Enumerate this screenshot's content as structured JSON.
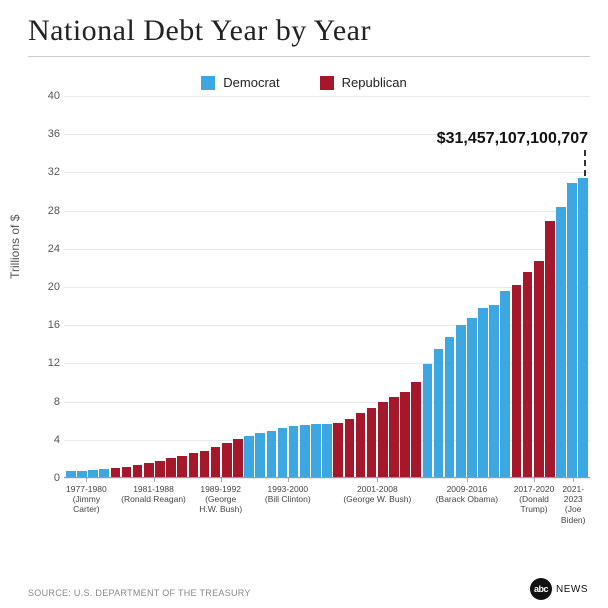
{
  "title": "National Debt Year by Year",
  "legend": {
    "democrat": {
      "label": "Democrat",
      "color": "#3ca7e0"
    },
    "republican": {
      "label": "Republican",
      "color": "#a5182b"
    }
  },
  "y_axis": {
    "label": "Trillions of $",
    "min": 0,
    "max": 40,
    "ticks": [
      0,
      4,
      8,
      12,
      16,
      20,
      24,
      28,
      32,
      36,
      40
    ],
    "grid_color": "#e8e8e8",
    "tick_fontsize": 11
  },
  "callout": {
    "text": "$31,457,107,100,707",
    "fontsize": 16
  },
  "presidents": [
    {
      "years": "1977-1980",
      "name": "(Jimmy Carter)",
      "party": "D",
      "span": 4
    },
    {
      "years": "1981-1988",
      "name": "(Ronald Reagan)",
      "party": "R",
      "span": 8
    },
    {
      "years": "1989-1992",
      "name": "(George H.W. Bush)",
      "party": "R",
      "span": 4
    },
    {
      "years": "1993-2000",
      "name": "(Bill Clinton)",
      "party": "D",
      "span": 8
    },
    {
      "years": "2001-2008",
      "name": "(George W. Bush)",
      "party": "R",
      "span": 8
    },
    {
      "years": "2009-2016",
      "name": "(Barack Obama)",
      "party": "D",
      "span": 8
    },
    {
      "years": "2017-2020",
      "name": "(Donald Trump)",
      "party": "R",
      "span": 4
    },
    {
      "years": "2021-2023",
      "name": "(Joe Biden)",
      "party": "D",
      "span": 3
    }
  ],
  "bars": [
    {
      "year": 1977,
      "value": 0.7,
      "party": "D"
    },
    {
      "year": 1978,
      "value": 0.77,
      "party": "D"
    },
    {
      "year": 1979,
      "value": 0.83,
      "party": "D"
    },
    {
      "year": 1980,
      "value": 0.91,
      "party": "D"
    },
    {
      "year": 1981,
      "value": 1.0,
      "party": "R"
    },
    {
      "year": 1982,
      "value": 1.14,
      "party": "R"
    },
    {
      "year": 1983,
      "value": 1.38,
      "party": "R"
    },
    {
      "year": 1984,
      "value": 1.57,
      "party": "R"
    },
    {
      "year": 1985,
      "value": 1.82,
      "party": "R"
    },
    {
      "year": 1986,
      "value": 2.13,
      "party": "R"
    },
    {
      "year": 1987,
      "value": 2.35,
      "party": "R"
    },
    {
      "year": 1988,
      "value": 2.6,
      "party": "R"
    },
    {
      "year": 1989,
      "value": 2.86,
      "party": "R"
    },
    {
      "year": 1990,
      "value": 3.23,
      "party": "R"
    },
    {
      "year": 1991,
      "value": 3.67,
      "party": "R"
    },
    {
      "year": 1992,
      "value": 4.06,
      "party": "R"
    },
    {
      "year": 1993,
      "value": 4.41,
      "party": "D"
    },
    {
      "year": 1994,
      "value": 4.69,
      "party": "D"
    },
    {
      "year": 1995,
      "value": 4.97,
      "party": "D"
    },
    {
      "year": 1996,
      "value": 5.22,
      "party": "D"
    },
    {
      "year": 1997,
      "value": 5.41,
      "party": "D"
    },
    {
      "year": 1998,
      "value": 5.53,
      "party": "D"
    },
    {
      "year": 1999,
      "value": 5.66,
      "party": "D"
    },
    {
      "year": 2000,
      "value": 5.67,
      "party": "D"
    },
    {
      "year": 2001,
      "value": 5.81,
      "party": "R"
    },
    {
      "year": 2002,
      "value": 6.23,
      "party": "R"
    },
    {
      "year": 2003,
      "value": 6.78,
      "party": "R"
    },
    {
      "year": 2004,
      "value": 7.38,
      "party": "R"
    },
    {
      "year": 2005,
      "value": 7.93,
      "party": "R"
    },
    {
      "year": 2006,
      "value": 8.51,
      "party": "R"
    },
    {
      "year": 2007,
      "value": 9.01,
      "party": "R"
    },
    {
      "year": 2008,
      "value": 10.02,
      "party": "R"
    },
    {
      "year": 2009,
      "value": 11.91,
      "party": "D"
    },
    {
      "year": 2010,
      "value": 13.56,
      "party": "D"
    },
    {
      "year": 2011,
      "value": 14.79,
      "party": "D"
    },
    {
      "year": 2012,
      "value": 16.07,
      "party": "D"
    },
    {
      "year": 2013,
      "value": 16.74,
      "party": "D"
    },
    {
      "year": 2014,
      "value": 17.82,
      "party": "D"
    },
    {
      "year": 2015,
      "value": 18.15,
      "party": "D"
    },
    {
      "year": 2016,
      "value": 19.57,
      "party": "D"
    },
    {
      "year": 2017,
      "value": 20.24,
      "party": "R"
    },
    {
      "year": 2018,
      "value": 21.52,
      "party": "R"
    },
    {
      "year": 2019,
      "value": 22.72,
      "party": "R"
    },
    {
      "year": 2020,
      "value": 26.95,
      "party": "R"
    },
    {
      "year": 2021,
      "value": 28.43,
      "party": "D"
    },
    {
      "year": 2022,
      "value": 30.93,
      "party": "D"
    },
    {
      "year": 2023,
      "value": 31.46,
      "party": "D"
    }
  ],
  "source": "SOURCE: U.S. DEPARTMENT OF THE TREASURY",
  "logo": {
    "circle": "abc",
    "text": "NEWS"
  },
  "colors": {
    "background": "#ffffff",
    "title": "#222222",
    "rule": "#cccccc",
    "baseline": "#999999"
  }
}
